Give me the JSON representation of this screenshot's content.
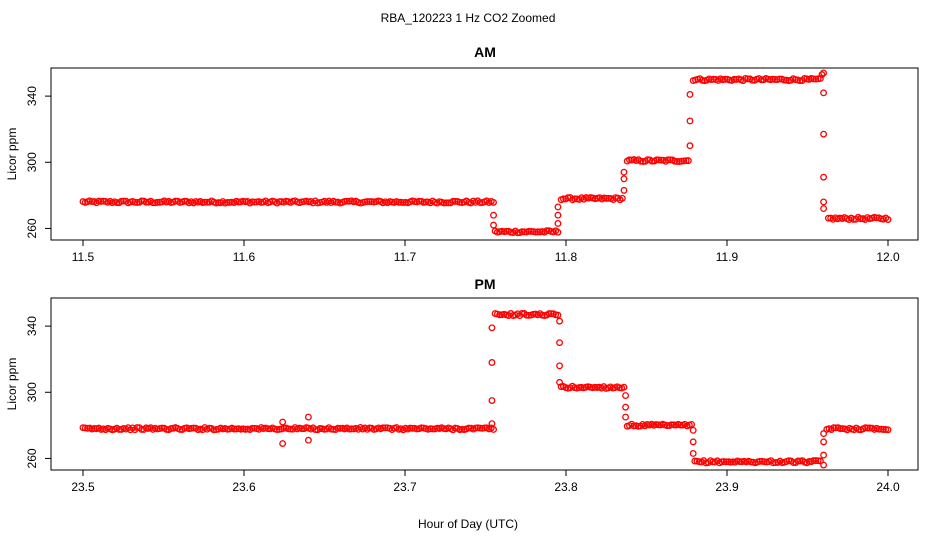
{
  "figure": {
    "title": "RBA_120223  1 Hz CO2 Zoomed",
    "xlabel": "Hour of Day (UTC)"
  },
  "colors": {
    "points": "#ff0000",
    "axes": "#000000",
    "background": "#ffffff"
  },
  "chart_data": [
    {
      "type": "scatter",
      "title": "AM",
      "ylabel": "Licor ppm",
      "xlim": [
        11.5,
        12.0
      ],
      "ylim": [
        253,
        357
      ],
      "xticks": [
        11.5,
        11.6,
        11.7,
        11.8,
        11.9,
        12.0
      ],
      "xtick_labels": [
        "11.5",
        "11.6",
        "11.7",
        "11.8",
        "11.9",
        "12.0"
      ],
      "yticks": [
        260,
        300,
        340
      ],
      "ytick_labels": [
        "260",
        "300",
        "340"
      ],
      "grid": false,
      "marker": "open-circle",
      "series": [
        {
          "segments": [
            {
              "x": [
                11.5,
                11.755
              ],
              "y": 276
            },
            {
              "x": [
                11.756,
                11.795
              ],
              "y": 258
            },
            {
              "x": [
                11.797,
                11.835
              ],
              "y": 278
            },
            {
              "x": [
                11.838,
                11.876
              ],
              "y": 301
            },
            {
              "x": [
                11.879,
                11.958
              ],
              "y": 350
            },
            {
              "x": [
                11.963,
                12.0
              ],
              "y": 266
            }
          ],
          "transitions": [
            {
              "x": 11.755,
              "y": [
                262,
                268
              ]
            },
            {
              "x": 11.795,
              "y": [
                263,
                268,
                273
              ]
            },
            {
              "x": 11.836,
              "y": [
                283,
                290,
                294
              ]
            },
            {
              "x": 11.877,
              "y": [
                310,
                325,
                341
              ]
            },
            {
              "x": 11.96,
              "y": [
                342,
                317,
                291,
                276,
                272
              ]
            }
          ],
          "outliers": [
            {
              "x": 11.959,
              "y": 353
            },
            {
              "x": 11.96,
              "y": 354
            }
          ]
        }
      ]
    },
    {
      "type": "scatter",
      "title": "PM",
      "ylabel": "Licor ppm",
      "xlim": [
        23.5,
        24.0
      ],
      "ylim": [
        253,
        357
      ],
      "xticks": [
        23.5,
        23.6,
        23.7,
        23.8,
        23.9,
        24.0
      ],
      "xtick_labels": [
        "23.5",
        "23.6",
        "23.7",
        "23.8",
        "23.9",
        "24.0"
      ],
      "yticks": [
        260,
        300,
        340
      ],
      "ytick_labels": [
        "260",
        "300",
        "340"
      ],
      "grid": false,
      "marker": "open-circle",
      "series": [
        {
          "segments": [
            {
              "x": [
                23.5,
                23.755
              ],
              "y": 278
            },
            {
              "x": [
                23.756,
                23.795
              ],
              "y": 347
            },
            {
              "x": [
                23.797,
                23.836
              ],
              "y": 303
            },
            {
              "x": [
                23.838,
                23.878
              ],
              "y": 280
            },
            {
              "x": [
                23.88,
                23.958
              ],
              "y": 258
            },
            {
              "x": [
                23.962,
                24.0
              ],
              "y": 278
            }
          ],
          "transitions": [
            {
              "x": 23.754,
              "y": [
                281,
                295,
                318,
                339
              ]
            },
            {
              "x": 23.796,
              "y": [
                343,
                330,
                316,
                306
              ]
            },
            {
              "x": 23.837,
              "y": [
                298,
                291,
                285
              ]
            },
            {
              "x": 23.879,
              "y": [
                277,
                270,
                263
              ]
            },
            {
              "x": 23.96,
              "y": [
                256,
                262,
                270,
                275
              ]
            }
          ],
          "outliers": [
            {
              "x": 23.624,
              "y": 282
            },
            {
              "x": 23.624,
              "y": 269
            },
            {
              "x": 23.64,
              "y": 285
            },
            {
              "x": 23.64,
              "y": 271
            }
          ]
        }
      ]
    }
  ]
}
